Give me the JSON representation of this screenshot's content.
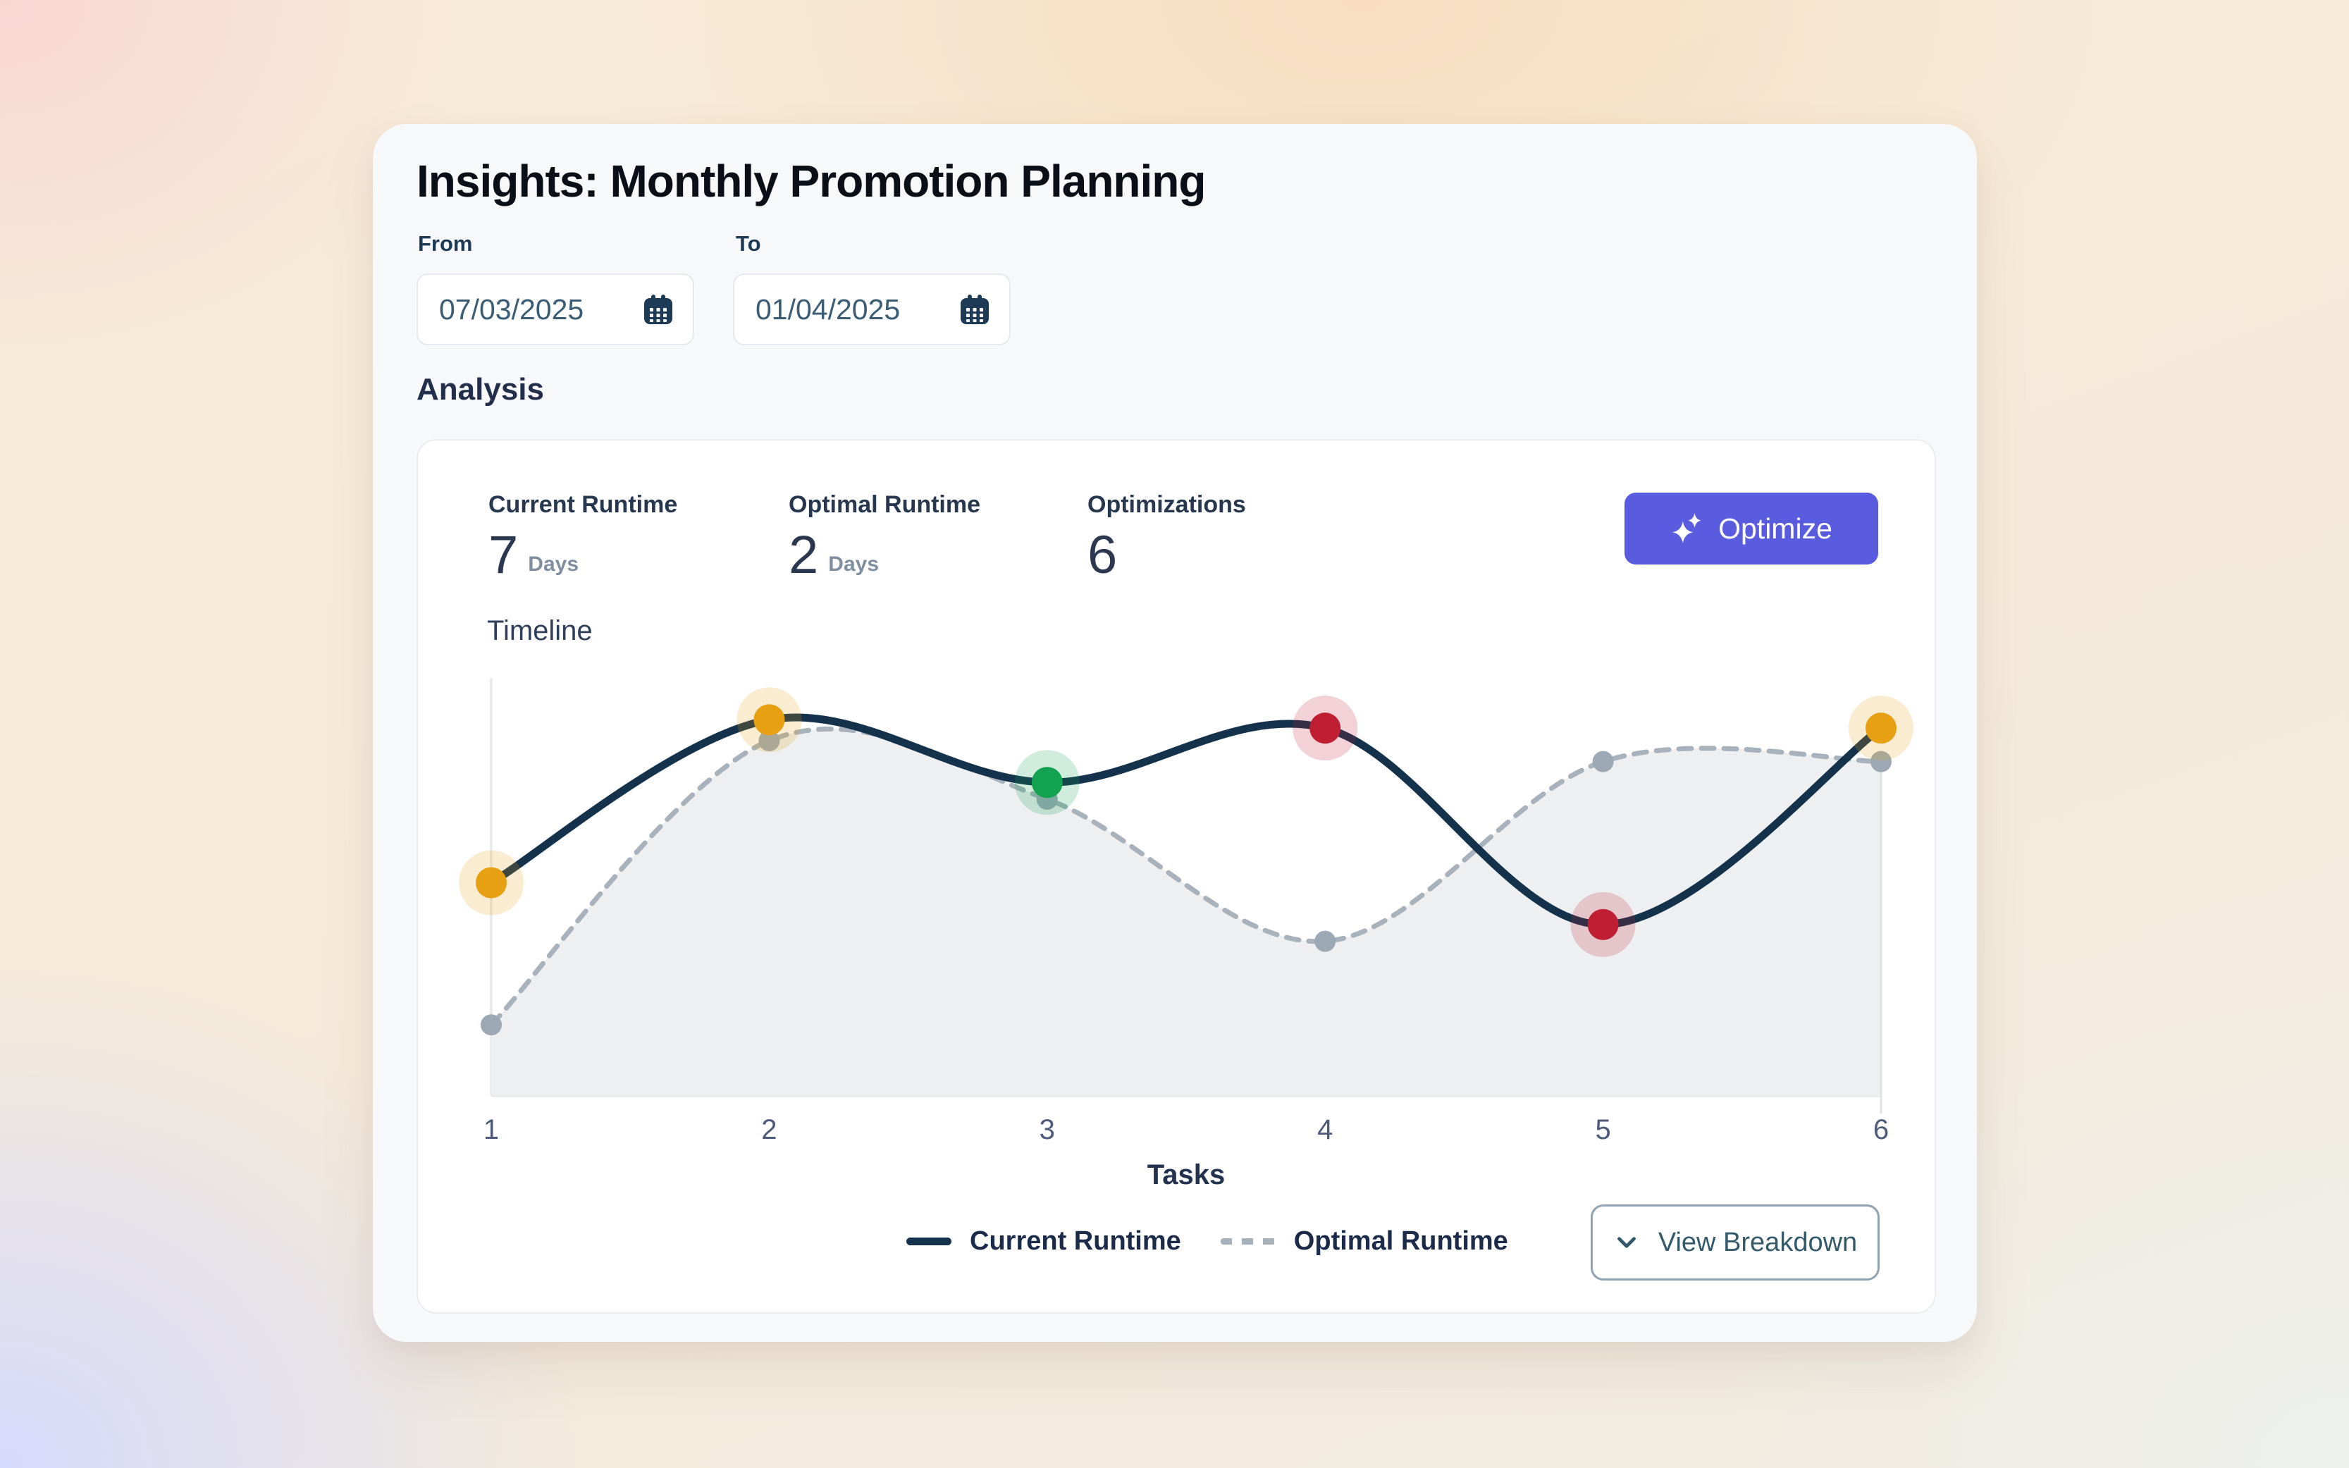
{
  "page": {
    "title": "Insights: Monthly Promotion Planning"
  },
  "filters": {
    "from_label": "From",
    "from_value": "07/03/2025",
    "to_label": "To",
    "to_value": "01/04/2025"
  },
  "section": {
    "heading": "Analysis"
  },
  "stats": [
    {
      "label": "Current Runtime",
      "value": "7",
      "unit": "Days"
    },
    {
      "label": "Optimal Runtime",
      "value": "2",
      "unit": "Days"
    },
    {
      "label": "Optimizations",
      "value": "6",
      "unit": ""
    }
  ],
  "optimize_button": {
    "label": "Optimize",
    "icon": "sparkles-icon",
    "color": "#5a5ce0"
  },
  "chart_data": {
    "type": "line",
    "title": "Timeline",
    "xlabel": "Tasks",
    "x": [
      1,
      2,
      3,
      4,
      5,
      6
    ],
    "series": [
      {
        "name": "Current Runtime",
        "style": "solid",
        "color": "#14324c",
        "values": [
          51,
          90,
          75,
          88,
          41,
          88
        ],
        "point_colors": [
          "#e7a012",
          "#e7a012",
          "#12a250",
          "#c01f33",
          "#c01f33",
          "#e7a012"
        ]
      },
      {
        "name": "Optimal Runtime",
        "style": "dashed",
        "color": "#a7b2bc",
        "values": [
          17,
          85,
          71,
          37,
          80,
          80
        ],
        "point_color": "#9ca9b4",
        "area_fill": "#ebedee"
      }
    ],
    "ylim": [
      0,
      100
    ],
    "grid": false,
    "legend_position": "bottom",
    "axis_color": "#e4e6e9",
    "tick_color": "#4d5a7a",
    "xlabel_color": "#22324f"
  },
  "breakdown_button": {
    "label": "View Breakdown",
    "icon": "chevron-down-icon"
  },
  "icons": {
    "calendar": "calendar-icon",
    "sparkles": "sparkles-icon",
    "chevron_down": "chevron-down-icon"
  }
}
